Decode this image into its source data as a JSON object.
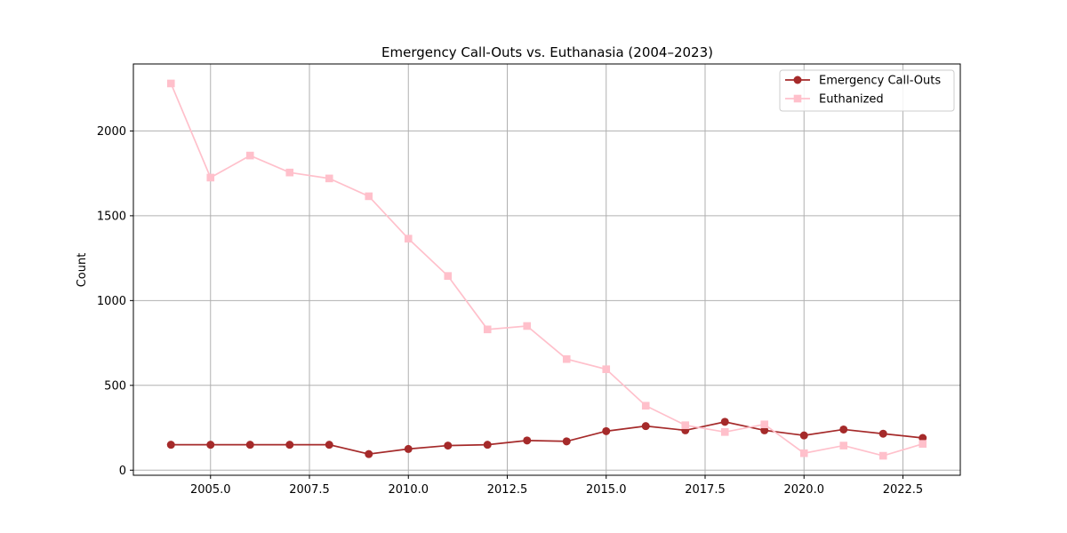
{
  "chart_data": {
    "type": "line",
    "title": "Emergency Call-Outs vs. Euthanasia (2004–2023)",
    "xlabel": "",
    "ylabel": "Count",
    "xlim": [
      2003.05,
      2023.95
    ],
    "ylim": [
      -30,
      2395
    ],
    "x_ticks": [
      2005,
      2007.5,
      2010,
      2012.5,
      2015,
      2017.5,
      2020,
      2022.5
    ],
    "x_tick_labels": [
      "2005.0",
      "2007.5",
      "2010.0",
      "2012.5",
      "2015.0",
      "2017.5",
      "2020.0",
      "2022.5"
    ],
    "y_ticks": [
      0,
      500,
      1000,
      1500,
      2000
    ],
    "y_tick_labels": [
      "0",
      "500",
      "1000",
      "1500",
      "2000"
    ],
    "grid": true,
    "legend_position": "top-right",
    "x": [
      2004,
      2005,
      2006,
      2007,
      2008,
      2009,
      2010,
      2011,
      2012,
      2013,
      2014,
      2015,
      2016,
      2017,
      2018,
      2019,
      2020,
      2021,
      2022,
      2023
    ],
    "series": [
      {
        "name": "Emergency Call-Outs",
        "color": "#a52a2a",
        "marker": "circle",
        "values": [
          150,
          150,
          150,
          150,
          150,
          95,
          125,
          145,
          150,
          175,
          170,
          230,
          260,
          235,
          285,
          235,
          205,
          240,
          215,
          190
        ]
      },
      {
        "name": "Euthanized",
        "color": "#ffc0cb",
        "marker": "square",
        "values": [
          2280,
          1725,
          1855,
          1755,
          1720,
          1615,
          1365,
          1145,
          830,
          850,
          655,
          595,
          380,
          265,
          225,
          270,
          100,
          145,
          85,
          155
        ]
      }
    ]
  }
}
